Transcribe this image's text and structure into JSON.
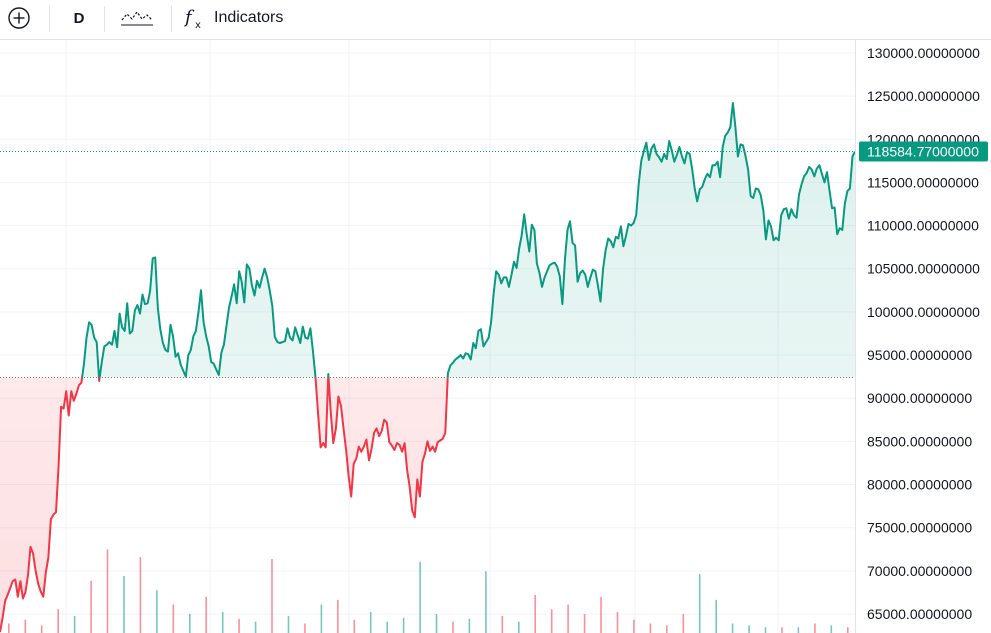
{
  "toolbar": {
    "add_icon": "circle-plus-icon",
    "interval": "D",
    "chart_style_icon": "line-chart-style-icon",
    "indicators_icon": "fx-icon",
    "indicators_label": "Indicators"
  },
  "colors": {
    "up": "#089981",
    "down": "#f23645",
    "grid": "#f0f3fa",
    "badge_bg": "#089981",
    "badge_text": "#ffffff"
  },
  "price_scale": {
    "labels": [
      "130000.00000000",
      "125000.00000000",
      "120000.00000000",
      "115000.00000000",
      "110000.00000000",
      "105000.00000000",
      "100000.00000000",
      "95000.00000000",
      "90000.00000000",
      "85000.00000000",
      "80000.00000000",
      "75000.00000000",
      "70000.00000000",
      "65000.00000000"
    ],
    "last_price_label": "118584.77000000"
  },
  "chart_data": {
    "type": "area",
    "style": "baseline",
    "baseline": 92400,
    "last_price": 118584.77,
    "ylim": [
      62800,
      131500
    ],
    "y_ticks": [
      130000,
      125000,
      120000,
      115000,
      110000,
      105000,
      100000,
      95000,
      90000,
      85000,
      80000,
      75000,
      70000,
      65000
    ],
    "series": [
      {
        "values": [
          62900,
          64500,
          66500,
          67200,
          68000,
          68800,
          69000,
          67000,
          68800,
          66800,
          67500,
          69500,
          72800,
          72000,
          70000,
          68500,
          67600,
          67000,
          69800,
          71500,
          76000,
          76500,
          76800,
          82000,
          89000,
          88800,
          90800,
          88000,
          90800,
          89700,
          90500,
          91500,
          91800,
          94000,
          97000,
          98800,
          98500,
          97000,
          96500,
          92000,
          94200,
          96000,
          96200,
          96500,
          96200,
          97800,
          95900,
          99800,
          98200,
          97800,
          101000,
          97500,
          97800,
          100200,
          100800,
          99800,
          102000,
          100900,
          101000,
          102400,
          106200,
          106300,
          100500,
          98000,
          96400,
          95600,
          95400,
          98500,
          97200,
          94800,
          95200,
          93900,
          93200,
          92500,
          95000,
          95600,
          97200,
          97800,
          100000,
          102500,
          98800,
          97200,
          96000,
          94200,
          94000,
          93300,
          92700,
          95300,
          96200,
          98400,
          100500,
          101800,
          103200,
          101000,
          104700,
          103500,
          101100,
          105500,
          105000,
          103100,
          101900,
          103600,
          102800,
          104000,
          105000,
          104000,
          102500,
          100700,
          97100,
          96500,
          96400,
          96500,
          96600,
          98100,
          97000,
          96700,
          98200,
          97300,
          96400,
          98300,
          97000,
          96900,
          98100,
          95400,
          92400,
          88200,
          84300,
          84800,
          84300,
          92800,
          88300,
          84800,
          86500,
          90200,
          89100,
          86500,
          84000,
          81000,
          78600,
          82400,
          83000,
          84400,
          83800,
          84400,
          85200,
          82800,
          84100,
          86000,
          86500,
          85600,
          86200,
          87500,
          87200,
          84900,
          84500,
          84000,
          84800,
          84600,
          83800,
          84800,
          81700,
          79700,
          77000,
          76200,
          80600,
          78600,
          82600,
          83600,
          85000,
          83900,
          84400,
          83800,
          84900,
          85100,
          85300,
          86000,
          92900,
          93800,
          94100,
          94500,
          94700,
          95000,
          94600,
          95200,
          95100,
          94500,
          96400,
          95800,
          97800,
          98000,
          96000,
          96500,
          97000,
          98800,
          102200,
          104700,
          104300,
          103300,
          104000,
          104000,
          102900,
          104300,
          105800,
          105100,
          107300,
          108900,
          111300,
          109000,
          107000,
          110100,
          109500,
          105600,
          104500,
          102900,
          104000,
          104700,
          105400,
          105600,
          105700,
          105200,
          104100,
          100900,
          106000,
          109500,
          110500,
          108000,
          107700,
          103500,
          104500,
          104800,
          104300,
          102900,
          104000,
          104900,
          104700,
          103000,
          101200,
          105000,
          107100,
          108500,
          108200,
          107500,
          108700,
          108500,
          109900,
          107600,
          108800,
          110200,
          110000,
          110300,
          111200,
          114800,
          117500,
          118600,
          119600,
          117600,
          118900,
          119400,
          118300,
          117900,
          117400,
          118300,
          117700,
          119800,
          118700,
          117400,
          118200,
          119100,
          118000,
          117200,
          118500,
          118300,
          116600,
          114300,
          112800,
          114200,
          114500,
          115400,
          116000,
          115600,
          117000,
          117000,
          117400,
          115600,
          119100,
          120400,
          120800,
          121400,
          124200,
          121400,
          118000,
          119400,
          119300,
          118000,
          116500,
          113400,
          113200,
          114300,
          114200,
          113500,
          111700,
          108400,
          110600,
          109900,
          108300,
          108600,
          108300,
          111200,
          111900,
          112000,
          110800,
          111900,
          111200,
          110900,
          113600,
          114800,
          115700,
          116100,
          116800,
          116500,
          115700,
          116600,
          117000,
          116000,
          115000,
          116200,
          114000,
          112000,
          112100,
          109000,
          109700,
          109500,
          112500,
          114000,
          114300,
          118000,
          118584.77
        ]
      }
    ],
    "volume": [
      {
        "v": 10,
        "c": "down"
      },
      {
        "v": 14,
        "c": "down"
      },
      {
        "v": 8,
        "c": "down"
      },
      {
        "v": 25,
        "c": "down"
      },
      {
        "v": 18,
        "c": "up"
      },
      {
        "v": 55,
        "c": "down"
      },
      {
        "v": 88,
        "c": "down"
      },
      {
        "v": 60,
        "c": "up"
      },
      {
        "v": 80,
        "c": "down"
      },
      {
        "v": 45,
        "c": "up"
      },
      {
        "v": 30,
        "c": "down"
      },
      {
        "v": 20,
        "c": "up"
      },
      {
        "v": 38,
        "c": "down"
      },
      {
        "v": 22,
        "c": "up"
      },
      {
        "v": 15,
        "c": "down"
      },
      {
        "v": 12,
        "c": "up"
      },
      {
        "v": 78,
        "c": "down"
      },
      {
        "v": 18,
        "c": "up"
      },
      {
        "v": 10,
        "c": "down"
      },
      {
        "v": 30,
        "c": "up"
      },
      {
        "v": 35,
        "c": "down"
      },
      {
        "v": 14,
        "c": "down"
      },
      {
        "v": 22,
        "c": "up"
      },
      {
        "v": 12,
        "c": "up"
      },
      {
        "v": 16,
        "c": "up"
      },
      {
        "v": 75,
        "c": "up"
      },
      {
        "v": 20,
        "c": "up"
      },
      {
        "v": 12,
        "c": "down"
      },
      {
        "v": 15,
        "c": "up"
      },
      {
        "v": 65,
        "c": "up"
      },
      {
        "v": 18,
        "c": "down"
      },
      {
        "v": 12,
        "c": "up"
      },
      {
        "v": 40,
        "c": "down"
      },
      {
        "v": 25,
        "c": "down"
      },
      {
        "v": 30,
        "c": "down"
      },
      {
        "v": 20,
        "c": "down"
      },
      {
        "v": 38,
        "c": "down"
      },
      {
        "v": 22,
        "c": "down"
      },
      {
        "v": 14,
        "c": "down"
      },
      {
        "v": 10,
        "c": "down"
      },
      {
        "v": 8,
        "c": "down"
      },
      {
        "v": 20,
        "c": "down"
      },
      {
        "v": 62,
        "c": "up"
      },
      {
        "v": 35,
        "c": "up"
      },
      {
        "v": 10,
        "c": "up"
      },
      {
        "v": 8,
        "c": "up"
      },
      {
        "v": 6,
        "c": "up"
      },
      {
        "v": 6,
        "c": "down"
      },
      {
        "v": 6,
        "c": "up"
      },
      {
        "v": 10,
        "c": "down"
      },
      {
        "v": 8,
        "c": "up"
      },
      {
        "v": 6,
        "c": "down"
      }
    ]
  }
}
